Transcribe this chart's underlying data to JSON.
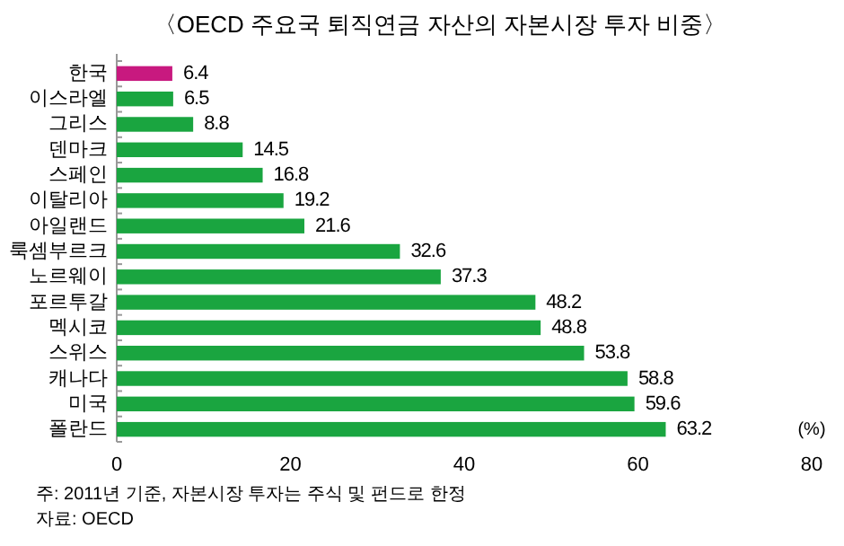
{
  "chart_data": {
    "type": "bar",
    "orientation": "horizontal",
    "title": "〈OECD 주요국 퇴직연금 자산의 자본시장 투자 비중〉",
    "xlabel": "(%)",
    "categories": [
      "한국",
      "이스라엘",
      "그리스",
      "덴마크",
      "스페인",
      "이탈리아",
      "아일랜드",
      "룩셈부르크",
      "노르웨이",
      "포르투갈",
      "멕시코",
      "스위스",
      "캐나다",
      "미국",
      "폴란드"
    ],
    "values": [
      6.4,
      6.5,
      8.8,
      14.5,
      16.8,
      19.2,
      21.6,
      32.6,
      37.3,
      48.2,
      48.8,
      53.8,
      58.8,
      59.6,
      63.2
    ],
    "colors": [
      "#c8197f",
      "#1aa540",
      "#1aa540",
      "#1aa540",
      "#1aa540",
      "#1aa540",
      "#1aa540",
      "#1aa540",
      "#1aa540",
      "#1aa540",
      "#1aa540",
      "#1aa540",
      "#1aa540",
      "#1aa540",
      "#1aa540"
    ],
    "xlim": [
      0,
      80
    ],
    "xticks": [
      0,
      20,
      40,
      60,
      80
    ],
    "data_labels": true,
    "grid": false,
    "annotations": [
      "주: 2011년 기준, 자본시장 투자는 주식 및 펀드로 한정",
      "자료: OECD"
    ]
  }
}
